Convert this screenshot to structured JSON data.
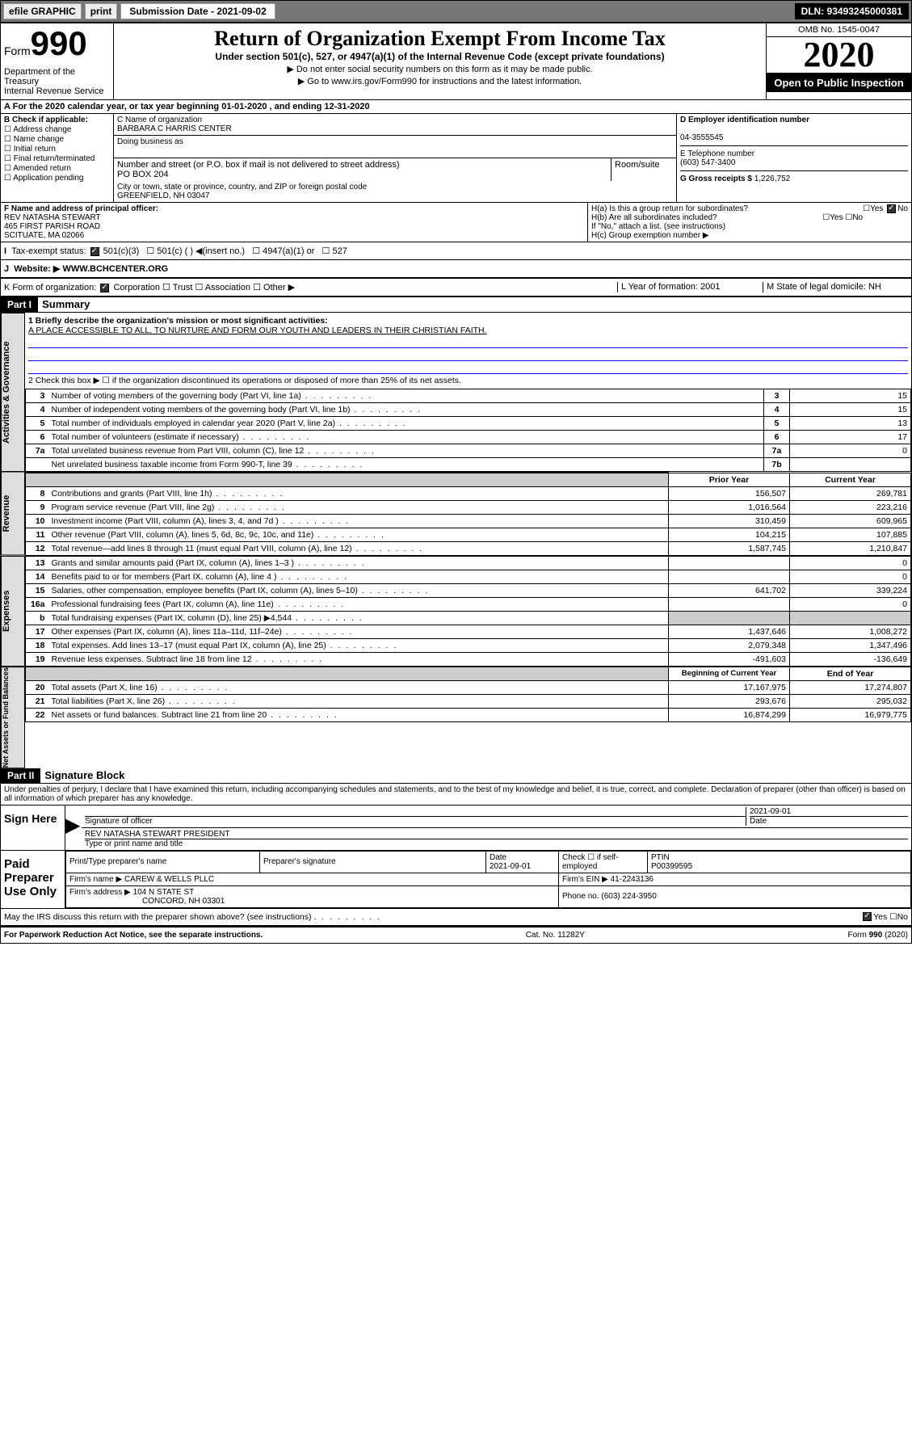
{
  "toolbar": {
    "efile": "efile GRAPHIC",
    "print": "print",
    "sub_label": "Submission Date - 2021-09-02",
    "dln": "DLN: 93493245000381"
  },
  "header": {
    "form": "Form",
    "n990": "990",
    "title": "Return of Organization Exempt From Income Tax",
    "subtitle": "Under section 501(c), 527, or 4947(a)(1) of the Internal Revenue Code (except private foundations)",
    "note1": "▶ Do not enter social security numbers on this form as it may be made public.",
    "note2": "▶ Go to www.irs.gov/Form990 for instructions and the latest information.",
    "dept": "Department of the Treasury\nInternal Revenue Service",
    "omb": "OMB No. 1545-0047",
    "year": "2020",
    "public": "Open to Public Inspection"
  },
  "rowA": "For the 2020 calendar year, or tax year beginning 01-01-2020    , and ending 12-31-2020",
  "B": {
    "hdr": "B Check if applicable:",
    "items": [
      "Address change",
      "Name change",
      "Initial return",
      "Final return/terminated",
      "Amended return",
      "Application pending"
    ]
  },
  "C": {
    "name_lbl": "C Name of organization",
    "name": "BARBARA C HARRIS CENTER",
    "dba_lbl": "Doing business as",
    "addr_lbl": "Number and street (or P.O. box if mail is not delivered to street address)",
    "room_lbl": "Room/suite",
    "addr": "PO BOX 204",
    "city_lbl": "City or town, state or province, country, and ZIP or foreign postal code",
    "city": "GREENFIELD, NH  03047"
  },
  "D": {
    "lbl": "D Employer identification number",
    "val": "04-3555545"
  },
  "E": {
    "lbl": "E Telephone number",
    "val": "(603) 547-3400"
  },
  "G": {
    "lbl": "G Gross receipts $",
    "val": "1,226,752"
  },
  "F": {
    "lbl": "F  Name and address of principal officer:",
    "name": "REV NATASHA STEWART",
    "addr1": "465 FIRST PARISH ROAD",
    "addr2": "SCITUATE, MA  02066"
  },
  "H": {
    "a": "H(a)  Is this a group return for subordinates?",
    "b": "H(b)  Are all subordinates included?",
    "b_note": "If \"No,\" attach a list. (see instructions)",
    "c": "H(c)  Group exemption number ▶"
  },
  "I": {
    "lbl": "Tax-exempt status:",
    "opts": [
      "501(c)(3)",
      "501(c) (  ) ◀(insert no.)",
      "4947(a)(1) or",
      "527"
    ]
  },
  "J": {
    "lbl": "Website: ▶",
    "val": "WWW.BCHCENTER.ORG"
  },
  "K": {
    "lbl": "K Form of organization:",
    "opts": [
      "Corporation",
      "Trust",
      "Association",
      "Other ▶"
    ]
  },
  "L": {
    "lbl": "L Year of formation:",
    "val": "2001"
  },
  "M": {
    "lbl": "M State of legal domicile:",
    "val": "NH"
  },
  "partI": {
    "hdr": "Part I",
    "title": "Summary",
    "line1_lbl": "1  Briefly describe the organization's mission or most significant activities:",
    "line1": "A PLACE ACCESSIBLE TO ALL, TO NURTURE AND FORM OUR YOUTH AND LEADERS IN THEIR CHRISTIAN FAITH.",
    "line2": "2   Check this box ▶ ☐  if the organization discontinued its operations or disposed of more than 25% of its net assets.",
    "tabs": [
      "Activities & Governance",
      "Revenue",
      "Expenses",
      "Net Assets or Fund Balances"
    ],
    "rows_gov": [
      {
        "n": "3",
        "d": "Number of voting members of the governing body (Part VI, line 1a)",
        "l": "3",
        "v": "15"
      },
      {
        "n": "4",
        "d": "Number of independent voting members of the governing body (Part VI, line 1b)",
        "l": "4",
        "v": "15"
      },
      {
        "n": "5",
        "d": "Total number of individuals employed in calendar year 2020 (Part V, line 2a)",
        "l": "5",
        "v": "13"
      },
      {
        "n": "6",
        "d": "Total number of volunteers (estimate if necessary)",
        "l": "6",
        "v": "17"
      },
      {
        "n": "7a",
        "d": "Total unrelated business revenue from Part VIII, column (C), line 12",
        "l": "7a",
        "v": "0"
      },
      {
        "n": "",
        "d": "Net unrelated business taxable income from Form 990-T, line 39",
        "l": "7b",
        "v": ""
      }
    ],
    "col_hdrs": {
      "prior": "Prior Year",
      "current": "Current Year"
    },
    "rows_rev": [
      {
        "n": "8",
        "d": "Contributions and grants (Part VIII, line 1h)",
        "p": "156,507",
        "c": "269,781"
      },
      {
        "n": "9",
        "d": "Program service revenue (Part VIII, line 2g)",
        "p": "1,016,564",
        "c": "223,216"
      },
      {
        "n": "10",
        "d": "Investment income (Part VIII, column (A), lines 3, 4, and 7d )",
        "p": "310,459",
        "c": "609,965"
      },
      {
        "n": "11",
        "d": "Other revenue (Part VIII, column (A), lines 5, 6d, 8c, 9c, 10c, and 11e)",
        "p": "104,215",
        "c": "107,885"
      },
      {
        "n": "12",
        "d": "Total revenue—add lines 8 through 11 (must equal Part VIII, column (A), line 12)",
        "p": "1,587,745",
        "c": "1,210,847"
      }
    ],
    "rows_exp": [
      {
        "n": "13",
        "d": "Grants and similar amounts paid (Part IX, column (A), lines 1–3 )",
        "p": "",
        "c": "0"
      },
      {
        "n": "14",
        "d": "Benefits paid to or for members (Part IX, column (A), line 4 )",
        "p": "",
        "c": "0"
      },
      {
        "n": "15",
        "d": "Salaries, other compensation, employee benefits (Part IX, column (A), lines 5–10)",
        "p": "641,702",
        "c": "339,224"
      },
      {
        "n": "16a",
        "d": "Professional fundraising fees (Part IX, column (A), line 11e)",
        "p": "",
        "c": "0"
      },
      {
        "n": "b",
        "d": "Total fundraising expenses (Part IX, column (D), line 25) ▶4,544",
        "p": "shade",
        "c": "shade"
      },
      {
        "n": "17",
        "d": "Other expenses (Part IX, column (A), lines 11a–11d, 11f–24e)",
        "p": "1,437,646",
        "c": "1,008,272"
      },
      {
        "n": "18",
        "d": "Total expenses. Add lines 13–17 (must equal Part IX, column (A), line 25)",
        "p": "2,079,348",
        "c": "1,347,496"
      },
      {
        "n": "19",
        "d": "Revenue less expenses. Subtract line 18 from line 12",
        "p": "-491,603",
        "c": "-136,649"
      }
    ],
    "col_hdrs2": {
      "begin": "Beginning of Current Year",
      "end": "End of Year"
    },
    "rows_net": [
      {
        "n": "20",
        "d": "Total assets (Part X, line 16)",
        "p": "17,167,975",
        "c": "17,274,807"
      },
      {
        "n": "21",
        "d": "Total liabilities (Part X, line 26)",
        "p": "293,676",
        "c": "295,032"
      },
      {
        "n": "22",
        "d": "Net assets or fund balances. Subtract line 21 from line 20",
        "p": "16,874,299",
        "c": "16,979,775"
      }
    ]
  },
  "partII": {
    "hdr": "Part II",
    "title": "Signature Block",
    "perjury": "Under penalties of perjury, I declare that I have examined this return, including accompanying schedules and statements, and to the best of my knowledge and belief, it is true, correct, and complete. Declaration of preparer (other than officer) is based on all information of which preparer has any knowledge.",
    "sign_here": "Sign Here",
    "sig_officer": "Signature of officer",
    "date": "2021-09-01",
    "date_lbl": "Date",
    "name_title": "REV NATASHA STEWART  PRESIDENT",
    "name_lbl": "Type or print name and title",
    "paid": "Paid Preparer Use Only",
    "prep_name_lbl": "Print/Type preparer's name",
    "prep_sig_lbl": "Preparer's signature",
    "prep_date": "2021-09-01",
    "self_emp": "Check ☐ if self-employed",
    "ptin_lbl": "PTIN",
    "ptin": "P00399595",
    "firm_name_lbl": "Firm's name     ▶",
    "firm_name": "CAREW & WELLS PLLC",
    "firm_ein_lbl": "Firm's EIN ▶",
    "firm_ein": "41-2243136",
    "firm_addr_lbl": "Firm's address ▶",
    "firm_addr": "104 N STATE ST",
    "firm_city": "CONCORD, NH  03301",
    "phone_lbl": "Phone no.",
    "phone": "(603) 224-3950",
    "discuss": "May the IRS discuss this return with the preparer shown above? (see instructions)"
  },
  "footer": {
    "pra": "For Paperwork Reduction Act Notice, see the separate instructions.",
    "cat": "Cat. No. 11282Y",
    "form": "Form 990 (2020)"
  },
  "yes": "Yes",
  "no": "No"
}
